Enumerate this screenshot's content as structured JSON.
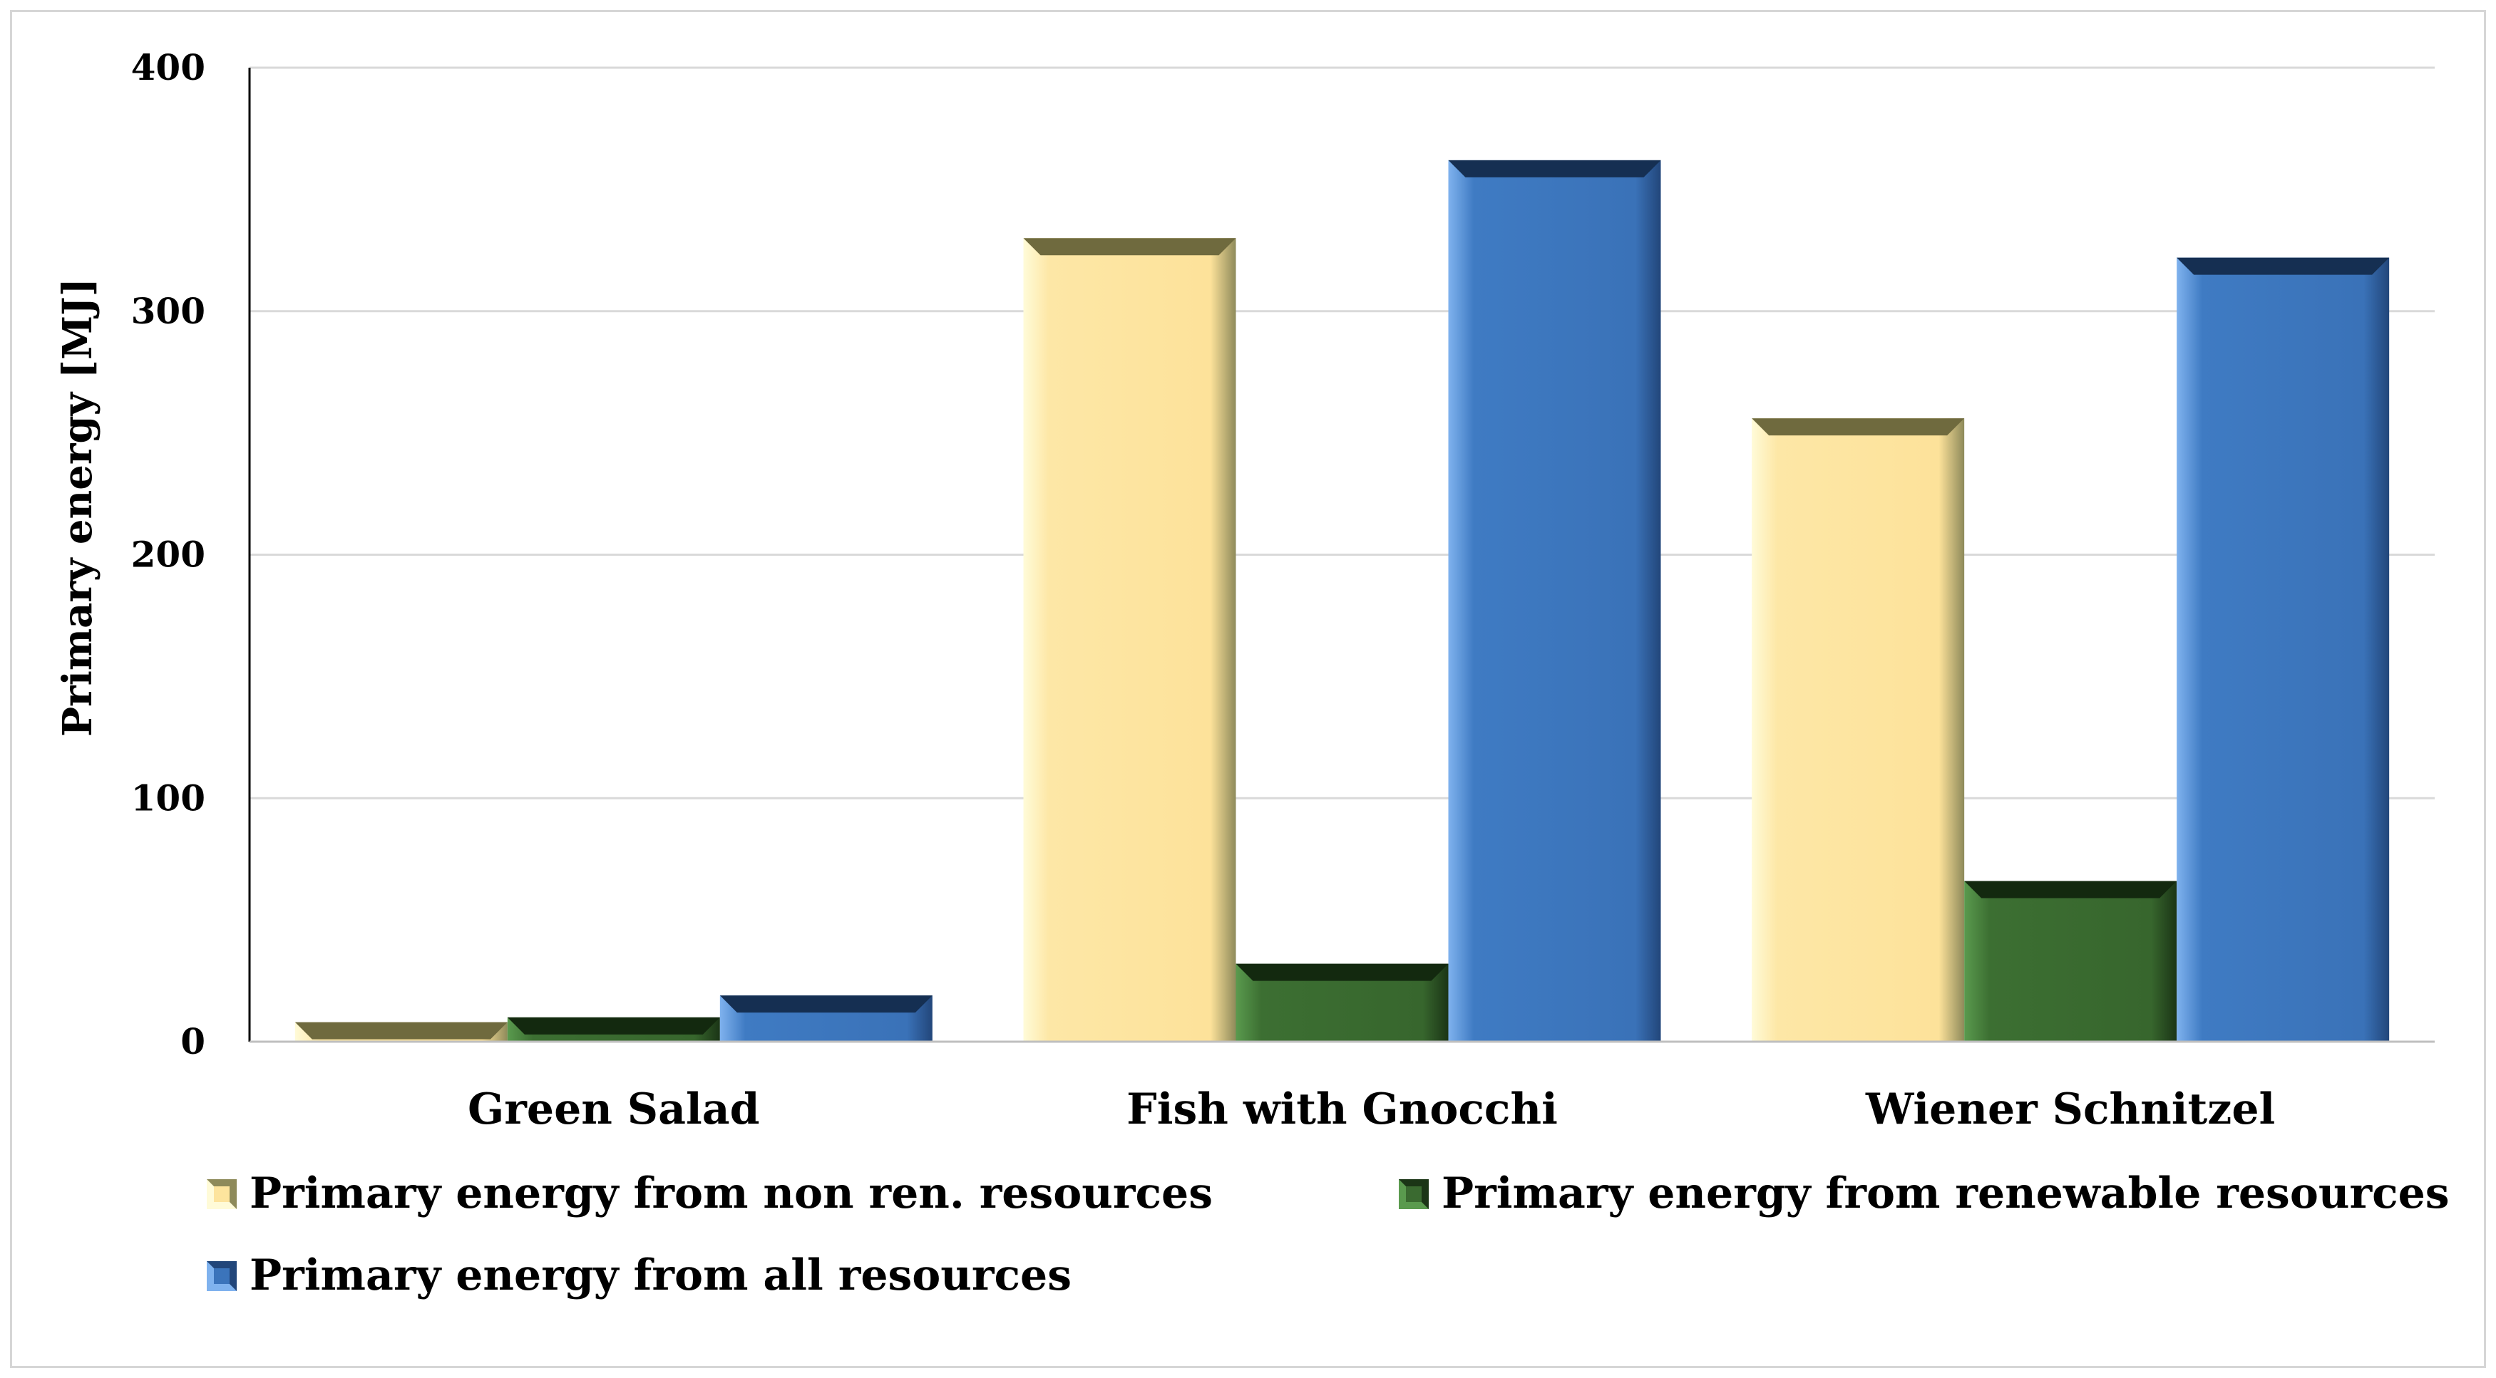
{
  "chart_data": {
    "type": "bar",
    "title": "",
    "xlabel": "",
    "ylabel": "Primary energy [MJ]",
    "ylim": [
      0,
      400
    ],
    "yticks": [
      0,
      100,
      200,
      300,
      400
    ],
    "grid": true,
    "legend_position": "bottom",
    "categories": [
      "Green Salad",
      "Fish with Gnocchi",
      "Wiener Schnitzel"
    ],
    "series": [
      {
        "name": "Primary energy from non ren. resources",
        "values": [
          8,
          330,
          256
        ],
        "color": "#fde49d"
      },
      {
        "name": "Primary energy from renewable resources",
        "values": [
          10,
          32,
          66
        ],
        "color": "#3a6a30"
      },
      {
        "name": "Primary energy from all resources",
        "values": [
          19,
          362,
          322
        ],
        "color": "#3b74bb"
      }
    ]
  }
}
